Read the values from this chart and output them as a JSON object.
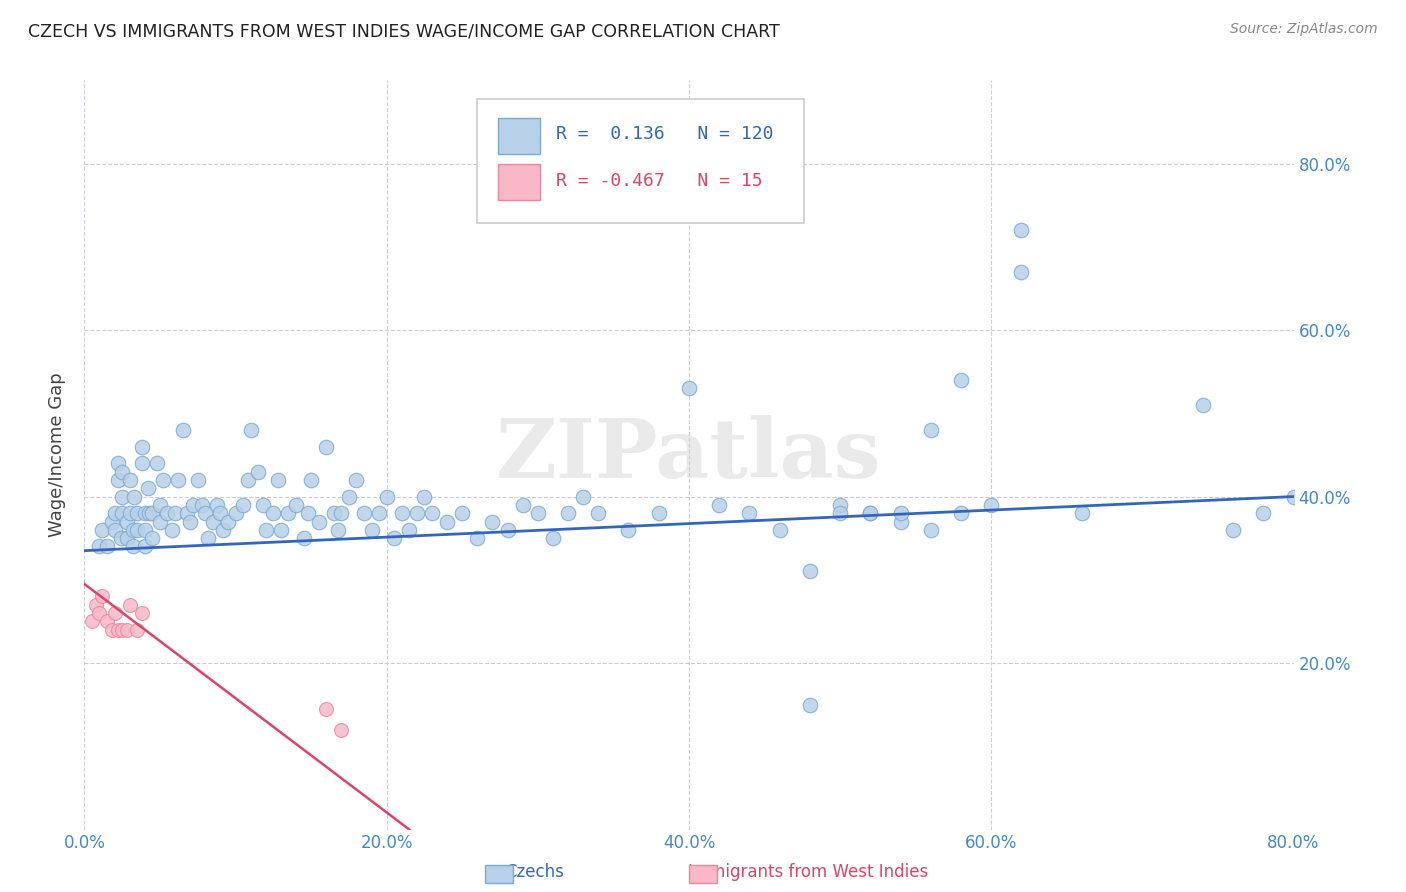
{
  "title": "CZECH VS IMMIGRANTS FROM WEST INDIES WAGE/INCOME GAP CORRELATION CHART",
  "source": "Source: ZipAtlas.com",
  "ylabel": "Wage/Income Gap",
  "xlim": [
    0.0,
    0.8
  ],
  "ylim": [
    0.0,
    0.9
  ],
  "xticks": [
    0.0,
    0.2,
    0.4,
    0.6,
    0.8
  ],
  "yticks": [
    0.2,
    0.4,
    0.6,
    0.8
  ],
  "xticklabels": [
    "0.0%",
    "20.0%",
    "40.0%",
    "60.0%",
    "80.0%"
  ],
  "yticklabels": [
    "20.0%",
    "40.0%",
    "60.0%",
    "80.0%"
  ],
  "blue_R": 0.136,
  "blue_N": 120,
  "pink_R": -0.467,
  "pink_N": 15,
  "blue_color": "#b8d0e8",
  "blue_edge_color": "#7aaad0",
  "blue_line_color": "#3366bb",
  "pink_color": "#f8b8c8",
  "pink_edge_color": "#e888a0",
  "pink_line_color": "#dd4466",
  "background_color": "#ffffff",
  "grid_color": "#ccccdd",
  "title_color": "#222222",
  "axis_label_color": "#444444",
  "tick_color": "#4488cc",
  "watermark": "ZIPatlas",
  "blue_line_x0": 0.0,
  "blue_line_x1": 0.8,
  "blue_line_y0": 0.335,
  "blue_line_y1": 0.4,
  "pink_line_x0": 0.0,
  "pink_line_x1": 0.215,
  "pink_line_y0": 0.295,
  "pink_line_y1": 0.0,
  "blue_x": [
    0.01,
    0.012,
    0.015,
    0.018,
    0.02,
    0.02,
    0.022,
    0.022,
    0.024,
    0.025,
    0.025,
    0.025,
    0.028,
    0.028,
    0.03,
    0.03,
    0.032,
    0.032,
    0.033,
    0.035,
    0.035,
    0.038,
    0.038,
    0.04,
    0.04,
    0.04,
    0.042,
    0.043,
    0.045,
    0.045,
    0.048,
    0.05,
    0.05,
    0.052,
    0.055,
    0.058,
    0.06,
    0.062,
    0.065,
    0.068,
    0.07,
    0.072,
    0.075,
    0.078,
    0.08,
    0.082,
    0.085,
    0.088,
    0.09,
    0.092,
    0.095,
    0.1,
    0.105,
    0.108,
    0.11,
    0.115,
    0.118,
    0.12,
    0.125,
    0.128,
    0.13,
    0.135,
    0.14,
    0.145,
    0.148,
    0.15,
    0.155,
    0.16,
    0.165,
    0.168,
    0.17,
    0.175,
    0.18,
    0.185,
    0.19,
    0.195,
    0.2,
    0.205,
    0.21,
    0.215,
    0.22,
    0.225,
    0.23,
    0.24,
    0.25,
    0.26,
    0.27,
    0.28,
    0.29,
    0.3,
    0.31,
    0.32,
    0.33,
    0.34,
    0.36,
    0.38,
    0.4,
    0.42,
    0.44,
    0.46,
    0.48,
    0.5,
    0.52,
    0.54,
    0.56,
    0.58,
    0.6,
    0.62,
    0.66,
    0.74,
    0.76,
    0.78,
    0.8,
    0.62,
    0.58,
    0.56,
    0.54,
    0.52,
    0.5,
    0.48
  ],
  "blue_y": [
    0.34,
    0.36,
    0.34,
    0.37,
    0.36,
    0.38,
    0.42,
    0.44,
    0.35,
    0.38,
    0.4,
    0.43,
    0.35,
    0.37,
    0.38,
    0.42,
    0.34,
    0.36,
    0.4,
    0.36,
    0.38,
    0.44,
    0.46,
    0.34,
    0.36,
    0.38,
    0.41,
    0.38,
    0.35,
    0.38,
    0.44,
    0.37,
    0.39,
    0.42,
    0.38,
    0.36,
    0.38,
    0.42,
    0.48,
    0.38,
    0.37,
    0.39,
    0.42,
    0.39,
    0.38,
    0.35,
    0.37,
    0.39,
    0.38,
    0.36,
    0.37,
    0.38,
    0.39,
    0.42,
    0.48,
    0.43,
    0.39,
    0.36,
    0.38,
    0.42,
    0.36,
    0.38,
    0.39,
    0.35,
    0.38,
    0.42,
    0.37,
    0.46,
    0.38,
    0.36,
    0.38,
    0.4,
    0.42,
    0.38,
    0.36,
    0.38,
    0.4,
    0.35,
    0.38,
    0.36,
    0.38,
    0.4,
    0.38,
    0.37,
    0.38,
    0.35,
    0.37,
    0.36,
    0.39,
    0.38,
    0.35,
    0.38,
    0.4,
    0.38,
    0.36,
    0.38,
    0.53,
    0.39,
    0.38,
    0.36,
    0.15,
    0.39,
    0.38,
    0.37,
    0.36,
    0.38,
    0.39,
    0.72,
    0.38,
    0.51,
    0.36,
    0.38,
    0.4,
    0.67,
    0.54,
    0.48,
    0.38,
    0.38,
    0.38,
    0.31
  ],
  "pink_x": [
    0.005,
    0.008,
    0.01,
    0.012,
    0.015,
    0.018,
    0.02,
    0.022,
    0.025,
    0.028,
    0.03,
    0.035,
    0.038,
    0.16,
    0.17
  ],
  "pink_y": [
    0.25,
    0.27,
    0.26,
    0.28,
    0.25,
    0.24,
    0.26,
    0.24,
    0.24,
    0.24,
    0.27,
    0.24,
    0.26,
    0.145,
    0.12
  ]
}
